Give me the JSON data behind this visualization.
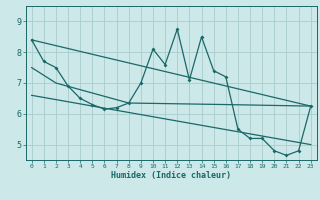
{
  "xlabel": "Humidex (Indice chaleur)",
  "background_color": "#cce8e8",
  "grid_color": "#aacccc",
  "line_color": "#1a6868",
  "xlim": [
    -0.5,
    23.5
  ],
  "ylim": [
    4.5,
    9.5
  ],
  "yticks": [
    5,
    6,
    7,
    8,
    9
  ],
  "xticks": [
    0,
    1,
    2,
    3,
    4,
    5,
    6,
    7,
    8,
    9,
    10,
    11,
    12,
    13,
    14,
    15,
    16,
    17,
    18,
    19,
    20,
    21,
    22,
    23
  ],
  "series1_x": [
    0,
    1,
    2,
    3,
    4,
    5,
    6,
    7,
    8,
    9,
    10,
    11,
    12,
    13,
    14,
    15,
    16,
    17,
    18,
    19,
    20,
    21,
    22,
    23
  ],
  "series1_y": [
    8.4,
    7.7,
    7.5,
    6.9,
    6.5,
    6.3,
    6.15,
    6.2,
    6.35,
    7.0,
    8.1,
    7.6,
    8.75,
    7.1,
    8.5,
    7.4,
    7.2,
    5.5,
    5.2,
    5.2,
    4.8,
    4.65,
    4.8,
    6.25
  ],
  "trend1_x": [
    0,
    23
  ],
  "trend1_y": [
    8.4,
    6.25
  ],
  "trend2_x": [
    0,
    2,
    8,
    16,
    23
  ],
  "trend2_y": [
    7.5,
    7.0,
    6.35,
    6.3,
    6.25
  ],
  "trend3_x": [
    0,
    23
  ],
  "trend3_y": [
    6.6,
    5.0
  ]
}
